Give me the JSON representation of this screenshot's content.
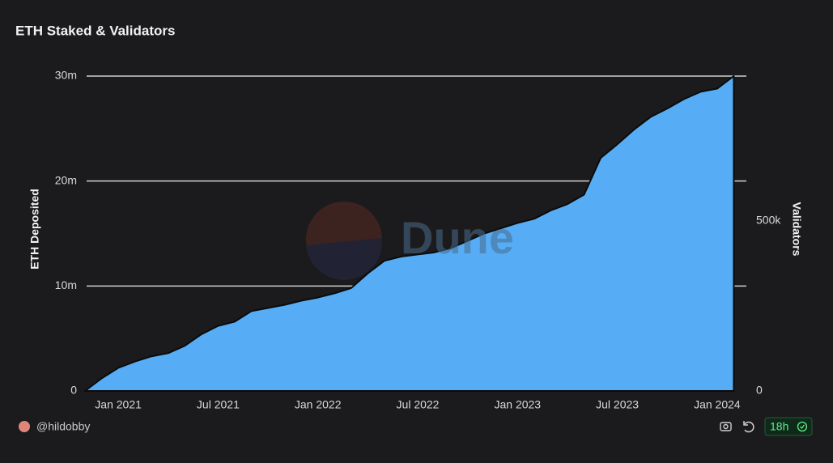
{
  "chart_data": {
    "type": "area",
    "title": "ETH Staked & Validators",
    "y_label": "ETH Deposited",
    "y2_label": "Validators",
    "x": [
      "2020-11",
      "2020-12",
      "2021-01",
      "2021-02",
      "2021-03",
      "2021-04",
      "2021-05",
      "2021-06",
      "2021-07",
      "2021-08",
      "2021-09",
      "2021-10",
      "2021-11",
      "2021-12",
      "2022-01",
      "2022-02",
      "2022-03",
      "2022-04",
      "2022-05",
      "2022-06",
      "2022-07",
      "2022-08",
      "2022-09",
      "2022-10",
      "2022-11",
      "2022-12",
      "2023-01",
      "2023-02",
      "2023-03",
      "2023-04",
      "2023-05",
      "2023-06",
      "2023-07",
      "2023-08",
      "2023-09",
      "2023-10",
      "2023-11",
      "2023-12",
      "2024-01",
      "2024-02"
    ],
    "values": [
      0,
      1200000,
      2200000,
      2800000,
      3300000,
      3600000,
      4300000,
      5400000,
      6200000,
      6600000,
      7600000,
      7900000,
      8200000,
      8600000,
      8900000,
      9300000,
      9800000,
      11200000,
      12400000,
      12800000,
      13000000,
      13200000,
      13600000,
      14300000,
      15000000,
      15500000,
      16000000,
      16400000,
      17200000,
      17800000,
      18700000,
      22200000,
      23500000,
      24900000,
      26100000,
      26900000,
      27800000,
      28500000,
      28800000,
      30000000
    ],
    "color": "#56adf5",
    "xlim": [
      "2020-11",
      "2024-03"
    ],
    "xticks": [
      {
        "value": "2021-01",
        "label": "Jan 2021"
      },
      {
        "value": "2021-07",
        "label": "Jul 2021"
      },
      {
        "value": "2022-01",
        "label": "Jan 2022"
      },
      {
        "value": "2022-07",
        "label": "Jul 2022"
      },
      {
        "value": "2023-01",
        "label": "Jan 2023"
      },
      {
        "value": "2023-07",
        "label": "Jul 2023"
      },
      {
        "value": "2024-01",
        "label": "Jan 2024"
      }
    ],
    "ylim": [
      0,
      31000000
    ],
    "yticks": [
      0,
      {
        "value": 10000000,
        "label": "10m"
      },
      {
        "value": 20000000,
        "label": "20m"
      },
      {
        "value": 30000000,
        "label": "30m"
      }
    ],
    "y2lim": [
      0,
      957000
    ],
    "y2ticks": [
      0,
      {
        "value": 500000,
        "label": "500k"
      }
    ],
    "grid": true
  },
  "watermark": "Dune",
  "footer": {
    "author": "@hildobby",
    "refresh": "18h"
  }
}
